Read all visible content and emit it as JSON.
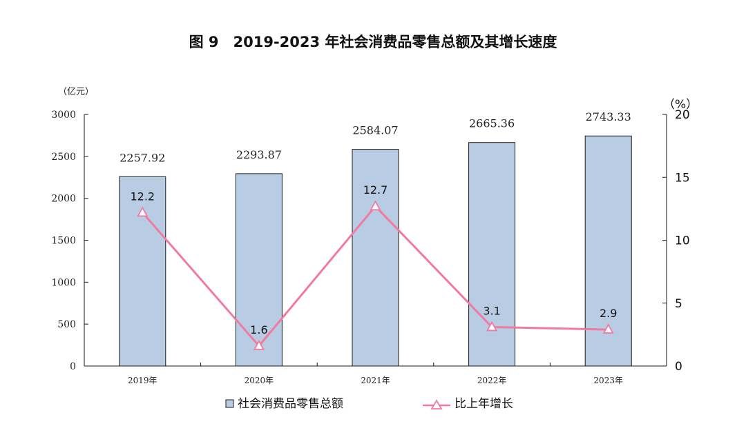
{
  "chart_data": {
    "type": "bar",
    "title": "图 9　2019-2023 年社会消费品零售总额及其增长速度",
    "categories": [
      "2019年",
      "2020年",
      "2021年",
      "2022年",
      "2023年"
    ],
    "y_left": {
      "unit_label": "（亿元）",
      "ylim": [
        0,
        3000
      ],
      "ticks": [
        "0",
        "500",
        "1000",
        "1500",
        "2000",
        "2500",
        "3000"
      ]
    },
    "y_right": {
      "unit_label": "（%）",
      "ylim": [
        0,
        20
      ],
      "ticks": [
        "0",
        "5",
        "10",
        "15",
        "20"
      ]
    },
    "series": [
      {
        "name": "社会消费品零售总额",
        "type": "bar",
        "axis": "left",
        "values": [
          2257.92,
          2293.87,
          2584.07,
          2665.36,
          2743.33
        ],
        "labels": [
          "2257.92",
          "2293.87",
          "2584.07",
          "2665.36",
          "2743.33"
        ],
        "color": "#b8cce4",
        "edge_color": "#1a1a1a"
      },
      {
        "name": "比上年增长",
        "type": "line",
        "axis": "right",
        "values": [
          12.2,
          1.6,
          12.7,
          3.1,
          2.9
        ],
        "labels": [
          "12.2",
          "1.6",
          "12.7",
          "3.1",
          "2.9"
        ],
        "color": "#f07aa0",
        "marker": "triangle"
      }
    ],
    "legend": {
      "placement": "bottom",
      "items": [
        {
          "label": "社会消费品零售总额",
          "icon": "bar-swatch-icon"
        },
        {
          "label": "比上年增长",
          "icon": "triangle-line-icon"
        }
      ]
    },
    "grid": false
  }
}
